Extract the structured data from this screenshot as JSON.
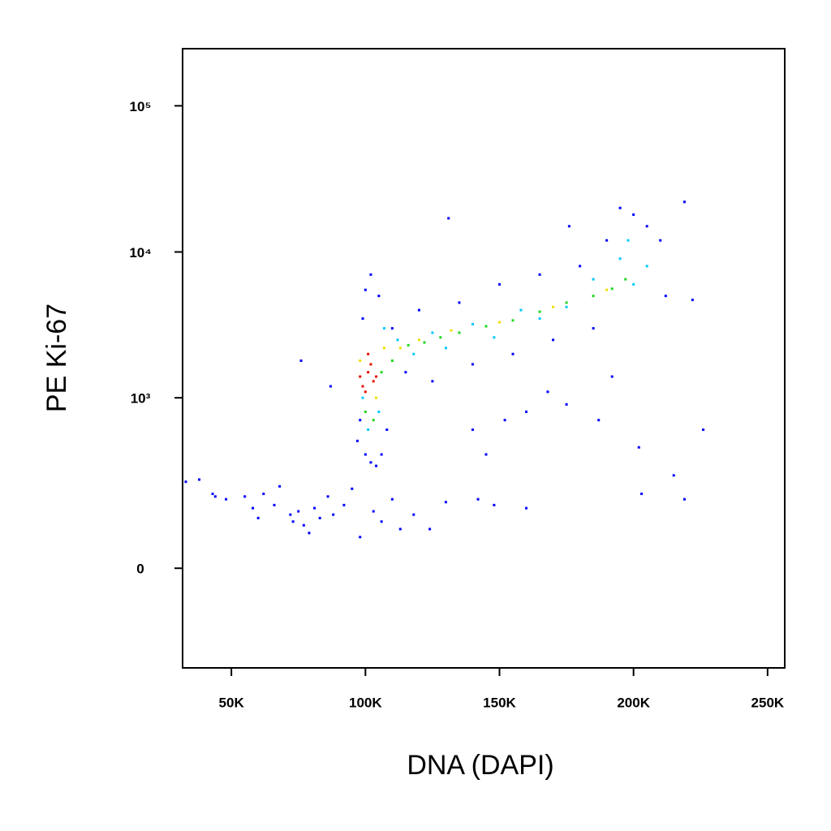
{
  "chart_data": {
    "type": "scatter",
    "x_label": "DNA (DAPI)",
    "y_label": "PE Ki-67",
    "yscale": "biex",
    "xlim": [
      31800,
      256400
    ],
    "xticks": [
      {
        "value": 50000,
        "label": "50K"
      },
      {
        "value": 100000,
        "label": "100K"
      },
      {
        "value": 150000,
        "label": "150K"
      },
      {
        "value": 200000,
        "label": "200K"
      },
      {
        "value": 250000,
        "label": "250K"
      }
    ],
    "ylim": [
      -315,
      246000
    ],
    "yticks": [
      0,
      {
        "value": 1000,
        "label": "10³"
      },
      {
        "value": 10000,
        "label": "10⁴"
      },
      {
        "value": 100000,
        "label": "10⁵"
      }
    ],
    "series": [
      {
        "color": "#0000ff",
        "x": [
          33000,
          38000,
          43000,
          44000,
          48000,
          55000,
          58000,
          60000,
          62000,
          66000,
          68000,
          72000,
          73000,
          75000,
          77000,
          79000,
          81000,
          83000,
          86000,
          88000,
          92000,
          95000,
          98000,
          103000,
          106000,
          110000,
          113000,
          118000,
          124000,
          130000,
          142000,
          148000,
          160000,
          203000,
          215000,
          219000,
          76000,
          87000,
          140000,
          145000,
          152000,
          160000,
          168000,
          175000,
          187000,
          192000,
          202000,
          226000,
          222000,
          131000,
          176000,
          219000,
          97000,
          98000,
          100000,
          102000,
          104000,
          106000,
          108000,
          100000,
          102000,
          105000,
          99000,
          110000,
          115000,
          120000,
          125000,
          135000,
          140000,
          150000,
          155000,
          165000,
          170000,
          180000,
          185000,
          195000,
          200000,
          205000,
          210000,
          212000,
          190000
        ],
        "y": [
          250,
          260,
          200,
          190,
          180,
          190,
          150,
          120,
          200,
          160,
          230,
          130,
          110,
          140,
          100,
          80,
          150,
          120,
          190,
          130,
          160,
          220,
          70,
          140,
          110,
          180,
          90,
          130,
          90,
          170,
          180,
          160,
          150,
          200,
          280,
          180,
          1800,
          1200,
          600,
          400,
          700,
          800,
          1100,
          900,
          700,
          1400,
          450,
          600,
          4700,
          17000,
          15000,
          22000,
          500,
          700,
          400,
          350,
          330,
          400,
          600,
          5500,
          7000,
          5000,
          3500,
          3000,
          1500,
          4000,
          1300,
          4500,
          1700,
          6000,
          2000,
          7000,
          2500,
          8000,
          3000,
          20000,
          18000,
          15000,
          12000,
          5000,
          12000
        ]
      },
      {
        "color": "#00c8ff",
        "x": [
          99000,
          101000,
          105000,
          107000,
          112000,
          118000,
          125000,
          130000,
          140000,
          148000,
          158000,
          165000,
          175000,
          185000,
          195000,
          200000,
          205000,
          198000
        ],
        "y": [
          1000,
          600,
          800,
          3000,
          2500,
          2000,
          2800,
          2200,
          3200,
          2600,
          4000,
          3500,
          4200,
          6500,
          9000,
          6000,
          8000,
          12000
        ]
      },
      {
        "color": "#20d820",
        "x": [
          100000,
          103000,
          106000,
          110000,
          116000,
          122000,
          128000,
          135000,
          145000,
          155000,
          165000,
          175000,
          185000,
          192000,
          197000
        ],
        "y": [
          800,
          700,
          1500,
          1800,
          2300,
          2400,
          2600,
          2800,
          3100,
          3400,
          3900,
          4500,
          5000,
          5600,
          6500
        ]
      },
      {
        "color": "#f0e000",
        "x": [
          98000,
          104000,
          107000,
          113000,
          120000,
          132000,
          150000,
          170000,
          190000
        ],
        "y": [
          1800,
          1000,
          2200,
          2200,
          2500,
          2900,
          3300,
          4200,
          5500
        ]
      },
      {
        "color": "#e81000",
        "x": [
          99000,
          101000,
          103000,
          100000,
          102000,
          104000,
          101000,
          98000
        ],
        "y": [
          1200,
          1500,
          1300,
          1100,
          1700,
          1400,
          2000,
          1400
        ]
      }
    ]
  }
}
